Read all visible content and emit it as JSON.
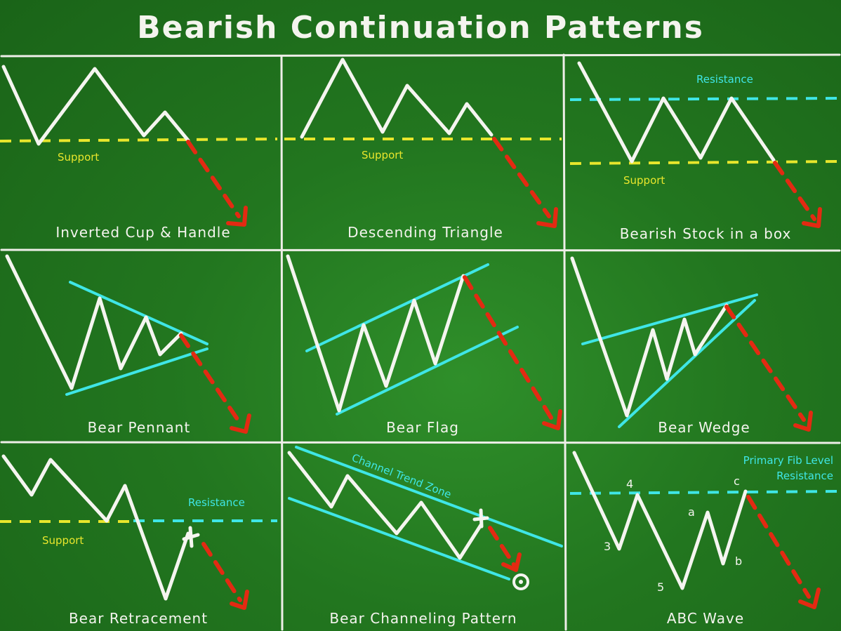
{
  "title": "Bearish Continuation Patterns",
  "panels": [
    {
      "caption": "Inverted Cup & Handle",
      "labels": {
        "support": "Support"
      }
    },
    {
      "caption": "Descending Triangle",
      "labels": {
        "support": "Support"
      }
    },
    {
      "caption": "Bearish Stock in a box",
      "labels": {
        "resistance": "Resistance",
        "support": "Support"
      }
    },
    {
      "caption": "Bear Pennant",
      "labels": {}
    },
    {
      "caption": "Bear Flag",
      "labels": {}
    },
    {
      "caption": "Bear Wedge",
      "labels": {}
    },
    {
      "caption": "Bear Retracement",
      "labels": {
        "resistance": "Resistance",
        "support": "Support"
      }
    },
    {
      "caption": "Bear Channeling Pattern",
      "labels": {
        "channel": "Channel Trend Zone"
      }
    },
    {
      "caption": "ABC Wave",
      "labels": {
        "fib1": "Primary Fib Level",
        "fib2": "Resistance",
        "w4": "4",
        "w3": "3",
        "w5": "5",
        "wa": "a",
        "wb": "b",
        "wc": "c"
      }
    }
  ],
  "colors": {
    "background": "#22761f",
    "chalk": "#f5f5f0",
    "support": "#e8e62c",
    "resistance": "#3fe6e6",
    "breakdown_arrow": "#e32a12"
  }
}
